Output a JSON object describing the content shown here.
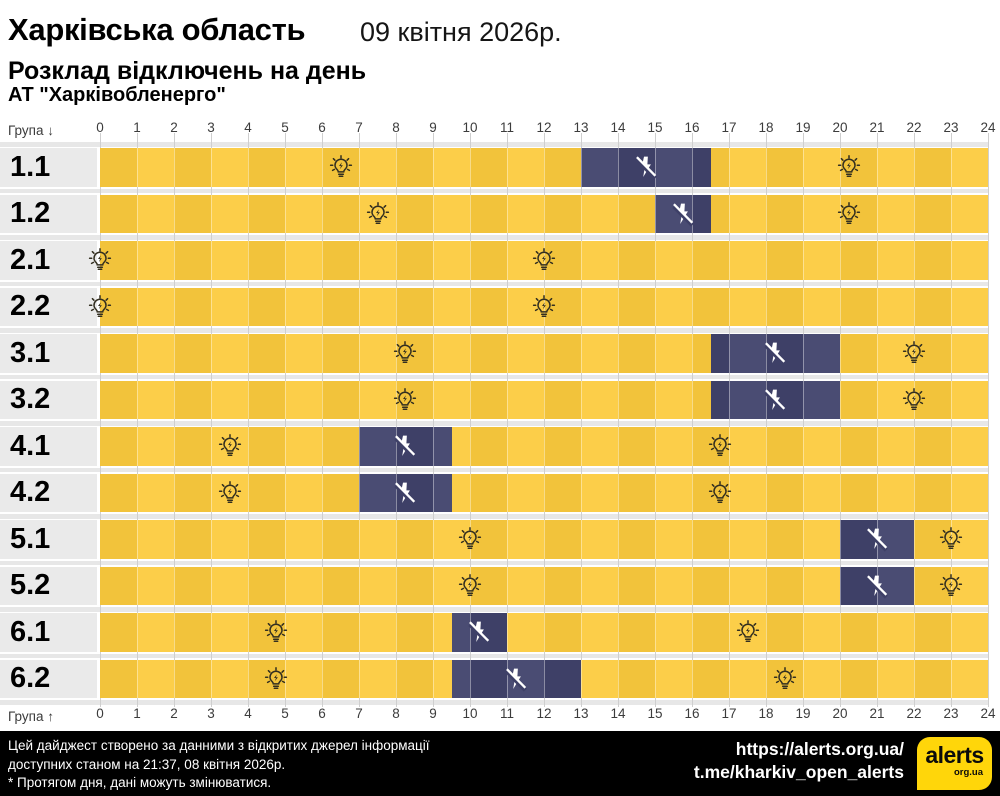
{
  "header": {
    "region": "Харківська область",
    "date": "09 квітня 2026р.",
    "subtitle": "Розклад відключень на день",
    "company": "АТ \"Харківобленерго\""
  },
  "axis": {
    "label_top": "Група ↓",
    "label_bottom": "Група ↑"
  },
  "colors": {
    "yellow_even": "#F2C33B",
    "yellow_odd": "#FCCE49",
    "navy_even": "#3E4067",
    "navy_odd": "#4A4C73",
    "row_label_bg": "#EAEAEA",
    "gridline": "#CFCFCF",
    "gap_band": "#E7E7E7",
    "footer_bg": "#000000",
    "logo_yellow": "#FFD60A",
    "bulb_icon": "#332F20",
    "flash_icon": "#FFFFFF"
  },
  "chart_data": {
    "type": "schedule-timeline",
    "title": "Розклад відключень на день",
    "x_range": [
      0,
      24
    ],
    "x_ticks": [
      0,
      1,
      2,
      3,
      4,
      5,
      6,
      7,
      8,
      9,
      10,
      11,
      12,
      13,
      14,
      15,
      16,
      17,
      18,
      19,
      20,
      21,
      22,
      23,
      24
    ],
    "grid": true,
    "rows": [
      {
        "group": "1.1",
        "outages": [
          [
            13,
            16.5
          ]
        ],
        "bulb_icons": [
          6.5,
          20.25
        ],
        "flash_icons": [
          14.75
        ]
      },
      {
        "group": "1.2",
        "outages": [
          [
            15,
            16.5
          ]
        ],
        "bulb_icons": [
          7.5,
          20.25
        ],
        "flash_icons": [
          15.75
        ]
      },
      {
        "group": "2.1",
        "outages": [],
        "bulb_icons": [
          0,
          12
        ],
        "flash_icons": []
      },
      {
        "group": "2.2",
        "outages": [],
        "bulb_icons": [
          0,
          12
        ],
        "flash_icons": []
      },
      {
        "group": "3.1",
        "outages": [
          [
            16.5,
            20
          ]
        ],
        "bulb_icons": [
          8.25,
          22
        ],
        "flash_icons": [
          18.25
        ]
      },
      {
        "group": "3.2",
        "outages": [
          [
            16.5,
            20
          ]
        ],
        "bulb_icons": [
          8.25,
          22
        ],
        "flash_icons": [
          18.25
        ]
      },
      {
        "group": "4.1",
        "outages": [
          [
            7,
            9.5
          ]
        ],
        "bulb_icons": [
          3.5,
          16.75
        ],
        "flash_icons": [
          8.25
        ]
      },
      {
        "group": "4.2",
        "outages": [
          [
            7,
            9.5
          ]
        ],
        "bulb_icons": [
          3.5,
          16.75
        ],
        "flash_icons": [
          8.25
        ]
      },
      {
        "group": "5.1",
        "outages": [
          [
            20,
            22
          ]
        ],
        "bulb_icons": [
          10,
          23
        ],
        "flash_icons": [
          21
        ]
      },
      {
        "group": "5.2",
        "outages": [
          [
            20,
            22
          ]
        ],
        "bulb_icons": [
          10,
          23
        ],
        "flash_icons": [
          21
        ]
      },
      {
        "group": "6.1",
        "outages": [
          [
            9.5,
            11
          ]
        ],
        "bulb_icons": [
          4.75,
          17.5
        ],
        "flash_icons": [
          10.25
        ]
      },
      {
        "group": "6.2",
        "outages": [
          [
            9.5,
            13
          ]
        ],
        "bulb_icons": [
          4.75,
          18.5
        ],
        "flash_icons": [
          11.25
        ]
      }
    ]
  },
  "footer": {
    "line1": "Цей дайджест створено за данними з відкритих джерел інформації",
    "line2": "доступних станом на 21:37, 08 квітня 2026р.",
    "line3": "* Протягом дня, дані можуть змінюватися.",
    "link1": "https://alerts.org.ua/",
    "link2": "t.me/kharkiv_open_alerts",
    "logo_text": "alerts",
    "logo_sub": "org.ua"
  }
}
